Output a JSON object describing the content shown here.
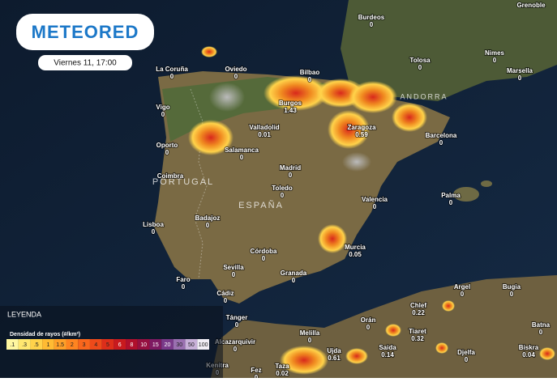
{
  "header": {
    "logo": "METEORED",
    "date": "Viernes 11, 17:00"
  },
  "regions": [
    "PORTUGAL",
    "ESPAÑA",
    "ANDORRA"
  ],
  "cities": [
    {
      "name": "Grenoble"
    },
    {
      "name": "Burdeos",
      "value": 0
    },
    {
      "name": "La Coruña",
      "value": 0
    },
    {
      "name": "Oviedo",
      "value": 0
    },
    {
      "name": "Bilbao",
      "value": 0
    },
    {
      "name": "Tolosa",
      "value": 0
    },
    {
      "name": "Nimes",
      "value": 0
    },
    {
      "name": "Marsella",
      "value": 0
    },
    {
      "name": "Vigo",
      "value": 0
    },
    {
      "name": "Burgos",
      "value": 1.43
    },
    {
      "name": "Valladolid",
      "value": 0.01
    },
    {
      "name": "Zaragoza",
      "value": 0.59
    },
    {
      "name": "Barcelona",
      "value": 0
    },
    {
      "name": "Oporto",
      "value": 0
    },
    {
      "name": "Salamanca",
      "value": 0
    },
    {
      "name": "Coimbra"
    },
    {
      "name": "Madrid",
      "value": 0
    },
    {
      "name": "Toledo",
      "value": 0
    },
    {
      "name": "Valencia",
      "value": 0
    },
    {
      "name": "Palma",
      "value": 0
    },
    {
      "name": "Lisboa",
      "value": 0
    },
    {
      "name": "Badajoz",
      "value": 0
    },
    {
      "name": "Murcia",
      "value": 0.05
    },
    {
      "name": "Córdoba",
      "value": 0
    },
    {
      "name": "Sevilla",
      "value": 0
    },
    {
      "name": "Faro",
      "value": 0
    },
    {
      "name": "Granada",
      "value": 0
    },
    {
      "name": "Cádiz",
      "value": 0
    },
    {
      "name": "Argel",
      "value": 0
    },
    {
      "name": "Bugia",
      "value": 0
    },
    {
      "name": "Chlef",
      "value": 0.22
    },
    {
      "name": "Orán",
      "value": 0
    },
    {
      "name": "Tiaret",
      "value": 0.32
    },
    {
      "name": "Batna",
      "value": 0
    },
    {
      "name": "Tánger",
      "value": 0
    },
    {
      "name": "Melilla",
      "value": 0
    },
    {
      "name": "Alcazarquivir",
      "value": 0
    },
    {
      "name": "Saida",
      "value": 0.14
    },
    {
      "name": "Ujda",
      "value": 0.61
    },
    {
      "name": "Djelfa",
      "value": 0
    },
    {
      "name": "Biskra",
      "value": 0.04
    },
    {
      "name": "Kenitra",
      "value": 0
    },
    {
      "name": "Taza",
      "value": 0.02
    },
    {
      "name": "Fez",
      "value": 0
    }
  ],
  "legend": {
    "title": "LEYENDA",
    "subtitle": "Densidad de rayos (#/km²)",
    "scale": [
      {
        "label": ".1",
        "color": "#fff7a0"
      },
      {
        "label": ".3",
        "color": "#ffe770"
      },
      {
        "label": ".5",
        "color": "#ffd24a"
      },
      {
        "label": "1",
        "color": "#ffbb33"
      },
      {
        "label": "1.5",
        "color": "#ffa028"
      },
      {
        "label": "2",
        "color": "#ff8420"
      },
      {
        "label": "3",
        "color": "#f9661c"
      },
      {
        "label": "4",
        "color": "#ee4a1a"
      },
      {
        "label": "5",
        "color": "#dd2e1a"
      },
      {
        "label": "6",
        "color": "#c81a1e"
      },
      {
        "label": "8",
        "color": "#b0102c"
      },
      {
        "label": "10",
        "color": "#961040"
      },
      {
        "label": "15",
        "color": "#7e1a62"
      },
      {
        "label": "20",
        "color": "#7a3a8a"
      },
      {
        "label": "30",
        "color": "#9a70b0"
      },
      {
        "label": "50",
        "color": "#c8b0d8"
      },
      {
        "label": "100",
        "color": "#f2eef6"
      }
    ]
  }
}
